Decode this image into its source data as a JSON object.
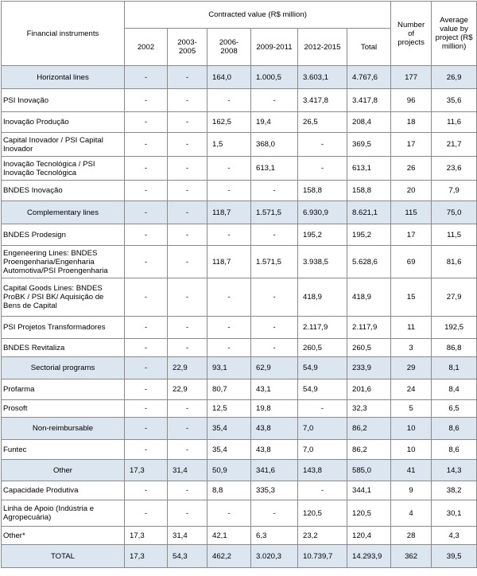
{
  "header": {
    "instruments": "Financial instruments",
    "contracted": "Contracted value (R$ million)",
    "periods": [
      "2002",
      "2003-\n2005",
      "2006-\n2008",
      "2009-2011",
      "2012-2015",
      "Total"
    ],
    "projects": "Number\nof\nprojects",
    "average": "Average\nvalue by\nproject (R$\nmillion)"
  },
  "rows": [
    {
      "type": "cat",
      "name": "Horizontal lines",
      "vals": [
        "-",
        "-",
        "164,0",
        "1.000,5",
        "3.603,1",
        "4.767,6"
      ],
      "projects": "177",
      "avg": "26,9"
    },
    {
      "type": "item",
      "name": "PSI Inovação",
      "vals": [
        "-",
        "-",
        "-",
        "-",
        "3.417,8",
        "3.417,8"
      ],
      "projects": "96",
      "avg": "35,6"
    },
    {
      "type": "item",
      "name": "Inovação Produção",
      "vals": [
        "-",
        "-",
        "162,5",
        "19,4",
        "26,5",
        "208,4"
      ],
      "projects": "18",
      "avg": "11,6"
    },
    {
      "type": "item",
      "name": "Capital Inovador / PSI Capital Inovador",
      "vals": [
        "-",
        "-",
        "1,5",
        "368,0",
        "-",
        "369,5"
      ],
      "projects": "17",
      "avg": "21,7"
    },
    {
      "type": "item",
      "name": "Inovação Tecnológica / PSI Inovação Tecnológica",
      "vals": [
        "-",
        "-",
        "-",
        "613,1",
        "-",
        "613,1"
      ],
      "projects": "26",
      "avg": "23,6"
    },
    {
      "type": "item",
      "name": "BNDES Inovação",
      "vals": [
        "-",
        "-",
        "-",
        "-",
        "158,8",
        "158,8"
      ],
      "projects": "20",
      "avg": "7,9"
    },
    {
      "type": "cat",
      "name": "Complementary lines",
      "vals": [
        "-",
        "-",
        "118,7",
        "1.571,5",
        "6.930,9",
        "8.621,1"
      ],
      "projects": "115",
      "avg": "75,0"
    },
    {
      "type": "item",
      "name": "BNDES Prodesign",
      "vals": [
        "-",
        "-",
        "-",
        "-",
        "195,2",
        "195,2"
      ],
      "projects": "17",
      "avg": "11,5"
    },
    {
      "type": "item",
      "name": "Engeneering Lines: BNDES Proengenharia/Engenharia Automotiva/PSI Proengenharia",
      "vals": [
        "-",
        "-",
        "118,7",
        "1.571,5",
        "3.938,5",
        "5.628,6"
      ],
      "projects": "69",
      "avg": "81,6"
    },
    {
      "type": "item",
      "name": "Capital Goods Lines: BNDES ProBK / PSI BK/ Aquisição de Bens de Capital",
      "vals": [
        "-",
        "-",
        "-",
        "-",
        "418,9",
        "418,9"
      ],
      "projects": "15",
      "avg": "27,9"
    },
    {
      "type": "item",
      "name": "PSI Projetos Transformadores",
      "vals": [
        "-",
        "-",
        "-",
        "-",
        "2.117,9",
        "2.117,9"
      ],
      "projects": "11",
      "avg": "192,5"
    },
    {
      "type": "item",
      "name": "BNDES Revitaliza",
      "vals": [
        "-",
        "-",
        "-",
        "-",
        "260,5",
        "260,5"
      ],
      "projects": "3",
      "avg": "86,8"
    },
    {
      "type": "cat",
      "name": "Sectorial programs",
      "vals": [
        "-",
        "22,9",
        "93,1",
        "62,9",
        "54,9",
        "233,9"
      ],
      "projects": "29",
      "avg": "8,1"
    },
    {
      "type": "item",
      "name": "Profarma",
      "vals": [
        "-",
        "22,9",
        "80,7",
        "43,1",
        "54,9",
        "201,6"
      ],
      "projects": "24",
      "avg": "8,4"
    },
    {
      "type": "item",
      "name": "Prosoft",
      "vals": [
        "-",
        "-",
        "12,5",
        "19,8",
        "-",
        "32,3"
      ],
      "projects": "5",
      "avg": "6,5"
    },
    {
      "type": "cat",
      "name": "Non-reimbursable",
      "vals": [
        "-",
        "-",
        "35,4",
        "43,8",
        "7,0",
        "86,2"
      ],
      "projects": "10",
      "avg": "8,6"
    },
    {
      "type": "item",
      "name": "Funtec",
      "vals": [
        "-",
        "-",
        "35,4",
        "43,8",
        "7,0",
        "86,2"
      ],
      "projects": "10",
      "avg": "8,6"
    },
    {
      "type": "cat",
      "name": "Other",
      "vals": [
        "17,3",
        "31,4",
        "50,9",
        "341,6",
        "143,8",
        "585,0"
      ],
      "projects": "41",
      "avg": "14,3"
    },
    {
      "type": "item",
      "name": "Capacidade Produtiva",
      "vals": [
        "-",
        "-",
        "8,8",
        "335,3",
        "-",
        "344,1"
      ],
      "projects": "9",
      "avg": "38,2"
    },
    {
      "type": "item",
      "name": "Linha de Apoio (Indústria e Agropecuária)",
      "vals": [
        "-",
        "-",
        "-",
        "-",
        "120,5",
        "120,5"
      ],
      "projects": "4",
      "avg": "30,1"
    },
    {
      "type": "item",
      "name": "Other*",
      "vals": [
        "17,3",
        "31,4",
        "42,1",
        "6,3",
        "23,2",
        "120,4"
      ],
      "projects": "28",
      "avg": "4,3"
    },
    {
      "type": "total",
      "name": "TOTAL",
      "vals": [
        "17,3",
        "54,3",
        "462,2",
        "3.020,3",
        "10.739,7",
        "14.293,9"
      ],
      "projects": "362",
      "avg": "39,5"
    }
  ]
}
